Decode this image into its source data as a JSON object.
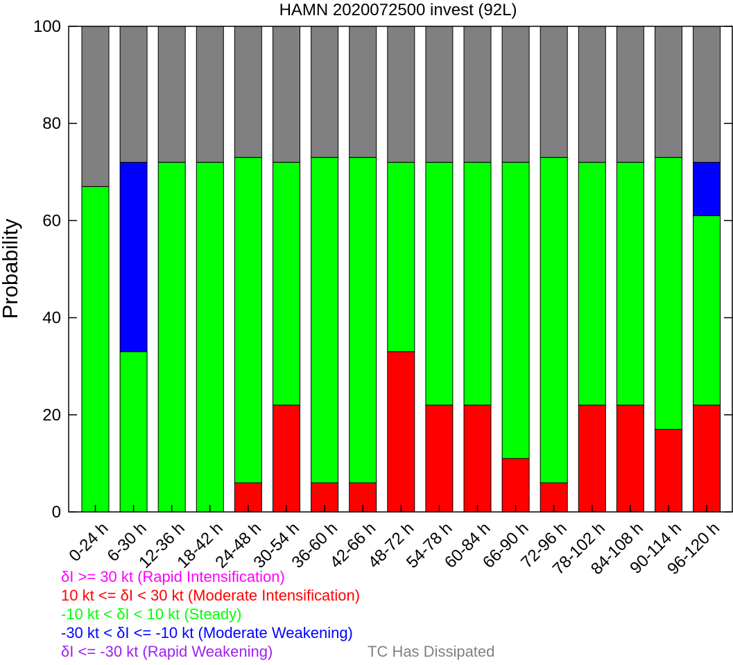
{
  "chart_data": {
    "type": "bar",
    "stacked": true,
    "title": "HAMN 2020072500 invest (92L)",
    "xlabel": "",
    "ylabel": "Probability",
    "ylim": [
      0,
      100
    ],
    "yticks": [
      "0",
      "20",
      "40",
      "60",
      "80",
      "100"
    ],
    "categories": [
      "0-24 h",
      "6-30 h",
      "12-36 h",
      "18-42 h",
      "24-48 h",
      "30-54 h",
      "36-60 h",
      "42-66 h",
      "48-72 h",
      "54-78 h",
      "60-84 h",
      "66-90 h",
      "72-96 h",
      "78-102 h",
      "84-108 h",
      "90-114 h",
      "96-120 h"
    ],
    "series": [
      {
        "key": "ri",
        "color": "#ff00ff",
        "values": [
          0,
          0,
          0,
          0,
          0,
          0,
          0,
          0,
          0,
          0,
          0,
          0,
          0,
          0,
          0,
          0,
          0
        ]
      },
      {
        "key": "mi",
        "color": "#ff0000",
        "values": [
          0,
          0,
          0,
          0,
          6,
          22,
          6,
          6,
          33,
          22,
          22,
          11,
          6,
          22,
          22,
          17,
          22
        ]
      },
      {
        "key": "steady",
        "color": "#00ff00",
        "values": [
          67,
          33,
          72,
          72,
          67,
          50,
          67,
          67,
          39,
          50,
          50,
          61,
          67,
          50,
          50,
          56,
          39
        ]
      },
      {
        "key": "mw",
        "color": "#0000ff",
        "values": [
          0,
          39,
          0,
          0,
          0,
          0,
          0,
          0,
          0,
          0,
          0,
          0,
          0,
          0,
          0,
          0,
          11
        ]
      },
      {
        "key": "rw",
        "color": "#a020f0",
        "values": [
          0,
          0,
          0,
          0,
          0,
          0,
          0,
          0,
          0,
          0,
          0,
          0,
          0,
          0,
          0,
          0,
          0
        ]
      },
      {
        "key": "dissipated",
        "color": "#808080",
        "values": [
          33,
          28,
          28,
          28,
          27,
          28,
          27,
          27,
          28,
          28,
          28,
          28,
          27,
          28,
          28,
          27,
          28
        ]
      }
    ],
    "grid": false
  },
  "legend": {
    "ri": {
      "text": "δI >= 30 kt (Rapid Intensification)",
      "color": "#ff00ff"
    },
    "mi": {
      "text": "10 kt <= δI < 30 kt (Moderate Intensification)",
      "color": "#ff0000"
    },
    "steady": {
      "text": "-10 kt < δI < 10 kt (Steady)",
      "color": "#00ff00"
    },
    "mw": {
      "text": "-30 kt < δI <= -10 kt (Moderate Weakening)",
      "color": "#0000ff"
    },
    "rw": {
      "text": "δI <= -30 kt (Rapid Weakening)",
      "color": "#a020f0"
    },
    "dissipated": {
      "text": "TC Has Dissipated",
      "color": "#808080"
    }
  }
}
